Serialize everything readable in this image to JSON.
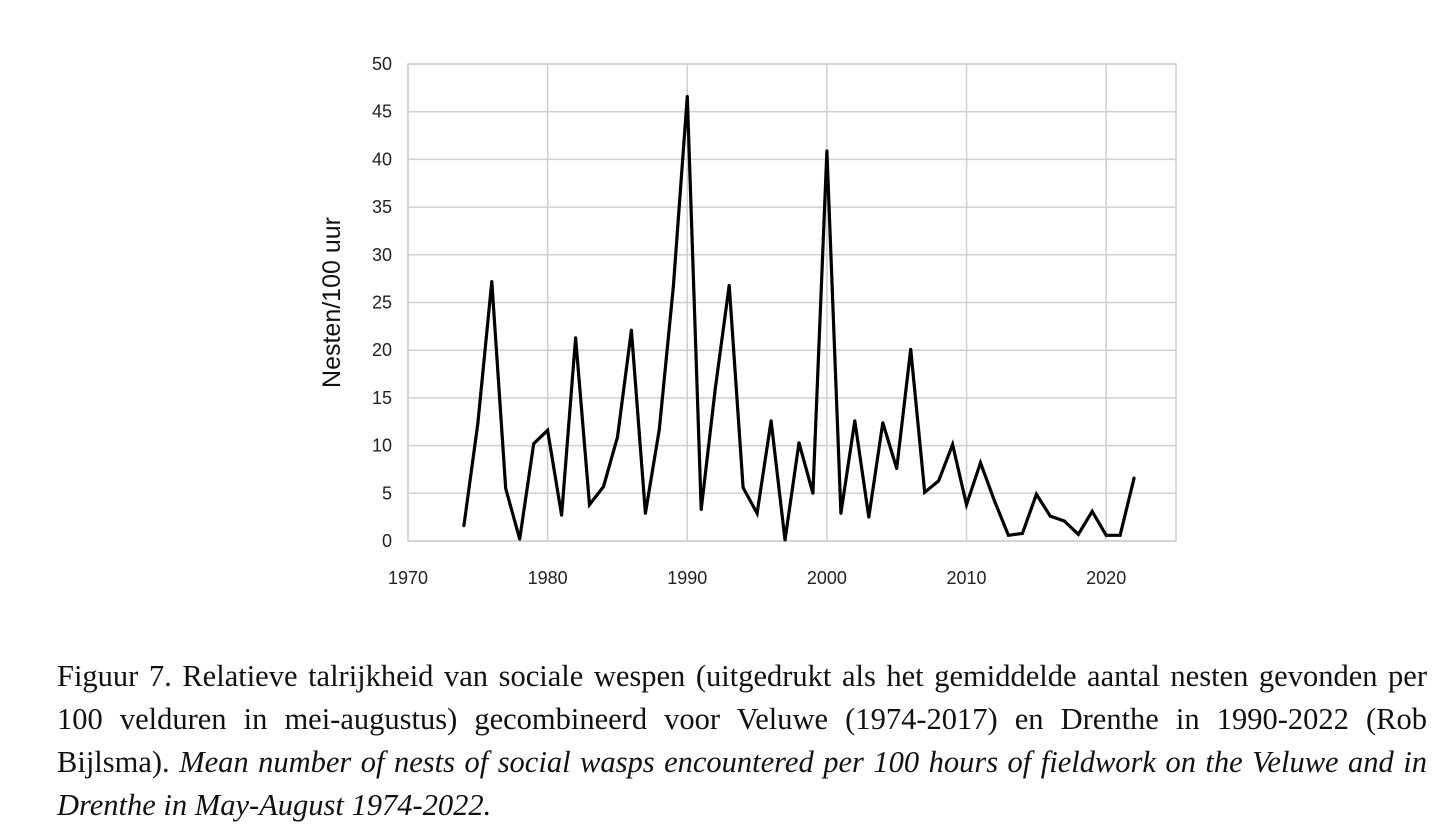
{
  "chart_data": {
    "type": "line",
    "title": "",
    "xlabel": "",
    "ylabel": "Nesten/100 uur",
    "xlim": [
      1970,
      2025
    ],
    "ylim": [
      0,
      50
    ],
    "xticks": [
      1970,
      1980,
      1990,
      2000,
      2010,
      2020
    ],
    "yticks": [
      0,
      5,
      10,
      15,
      20,
      25,
      30,
      35,
      40,
      45,
      50
    ],
    "grid": true,
    "legend": "none",
    "series": [
      {
        "color": "#000000",
        "x": [
          1974,
          1975,
          1976,
          1977,
          1978,
          1979,
          1980,
          1981,
          1982,
          1983,
          1984,
          1985,
          1986,
          1987,
          1988,
          1989,
          1990,
          1991,
          1992,
          1993,
          1994,
          1995,
          1996,
          1997,
          1998,
          1999,
          2000,
          2001,
          2002,
          2003,
          2004,
          2005,
          2006,
          2007,
          2008,
          2009,
          2010,
          2011,
          2012,
          2013,
          2014,
          2015,
          2016,
          2017,
          2018,
          2019,
          2020,
          2021,
          2022
        ],
        "y": [
          1.6,
          12.3,
          27.2,
          5.5,
          0.2,
          10.2,
          11.6,
          2.7,
          21.3,
          3.8,
          5.7,
          10.9,
          22.1,
          2.9,
          11.7,
          26.6,
          46.6,
          3.3,
          15.9,
          26.8,
          5.6,
          2.9,
          12.6,
          0.1,
          10.3,
          5.0,
          40.9,
          2.9,
          12.6,
          2.5,
          12.4,
          7.6,
          20.1,
          5.1,
          6.3,
          10.1,
          3.8,
          8.2,
          4.2,
          0.6,
          0.8,
          4.9,
          2.6,
          2.1,
          0.7,
          3.1,
          0.6,
          0.6,
          6.6
        ]
      }
    ]
  },
  "caption": {
    "dutch": "Figuur 7. Relatieve talrijkheid van sociale wespen (uitgedrukt als het gemiddelde aantal nesten gevonden per 100 velduren in mei-augustus) gecombineerd voor Veluwe (1974-2017) en Drenthe in 1990-2022 (Rob Bijlsma).",
    "english": "Mean number of nests of social wasps encountered per 100 hours of fieldwork on the Veluwe and in Drenthe in May-August 1974-2022."
  }
}
